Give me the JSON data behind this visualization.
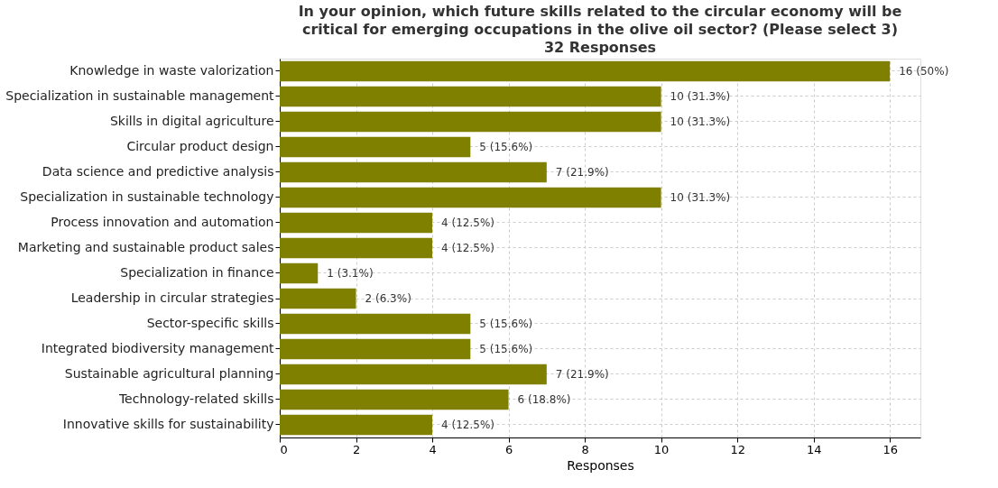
{
  "chart_data": {
    "type": "bar",
    "orientation": "horizontal",
    "title": "In your opinion, which future skills related to the circular economy will be critical for emerging occupations in the olive oil sector? (Please select 3)",
    "subtitle": "32 Responses",
    "xlabel": "Responses",
    "categories": [
      "Knowledge in waste valorization",
      "Specialization in sustainable management",
      "Skills in digital agriculture",
      "Circular product design",
      "Data science and predictive analysis",
      "Specialization in sustainable technology",
      "Process innovation and automation",
      "Marketing and sustainable product sales",
      "Specialization in finance",
      "Leadership in circular strategies",
      "Sector-specific skills",
      "Integrated biodiversity management",
      "Sustainable agricultural planning",
      "Technology-related skills",
      "Innovative skills for sustainability"
    ],
    "values": [
      16,
      10,
      10,
      5,
      7,
      10,
      4,
      4,
      1,
      2,
      5,
      5,
      7,
      6,
      4
    ],
    "value_labels": [
      "16 (50%)",
      "10 (31.3%)",
      "10 (31.3%)",
      "5 (15.6%)",
      "7 (21.9%)",
      "10 (31.3%)",
      "4 (12.5%)",
      "4 (12.5%)",
      "1 (3.1%)",
      "2 (6.3%)",
      "5 (15.6%)",
      "5 (15.6%)",
      "7 (21.9%)",
      "6 (18.8%)",
      "4 (12.5%)"
    ],
    "color": "#808000",
    "xlim": [
      0,
      16.8
    ],
    "xticks": [
      0,
      2,
      4,
      6,
      8,
      10,
      12,
      14,
      16
    ],
    "grid": true
  }
}
